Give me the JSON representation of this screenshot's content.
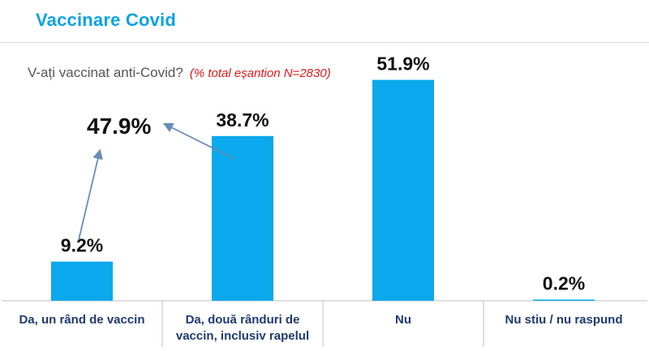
{
  "header": {
    "title": "Vaccinare Covid",
    "question": "V-ați vaccinat anti-Covid?",
    "note": "(% total eșantion   N=2830)"
  },
  "colors": {
    "bar": "#0aa8ec",
    "title": "#0aa3e0",
    "note": "#e01818",
    "arrow": "#6a8cb8"
  },
  "chart_data": {
    "type": "bar",
    "categories": [
      "Da, un rând de vaccin",
      "Da, două rânduri de vaccin, inclusiv rapelul",
      "Nu",
      "Nu stiu / nu raspund"
    ],
    "category_lines": [
      [
        "Da, un rând de vaccin"
      ],
      [
        "Da, două rânduri de",
        "vaccin, inclusiv rapelul"
      ],
      [
        "Nu"
      ],
      [
        "Nu stiu / nu raspund"
      ]
    ],
    "values": [
      9.2,
      38.7,
      51.9,
      0.2
    ],
    "value_labels": [
      "9.2%",
      "38.7%",
      "51.9%",
      "0.2%"
    ],
    "ylim": [
      0,
      60
    ],
    "grid": false,
    "annotations": [
      {
        "text": "47.9%",
        "value": 47.9,
        "sum_of": [
          "Da, un rând de vaccin",
          "Da, două rânduri de vaccin, inclusiv rapelul"
        ]
      }
    ]
  }
}
